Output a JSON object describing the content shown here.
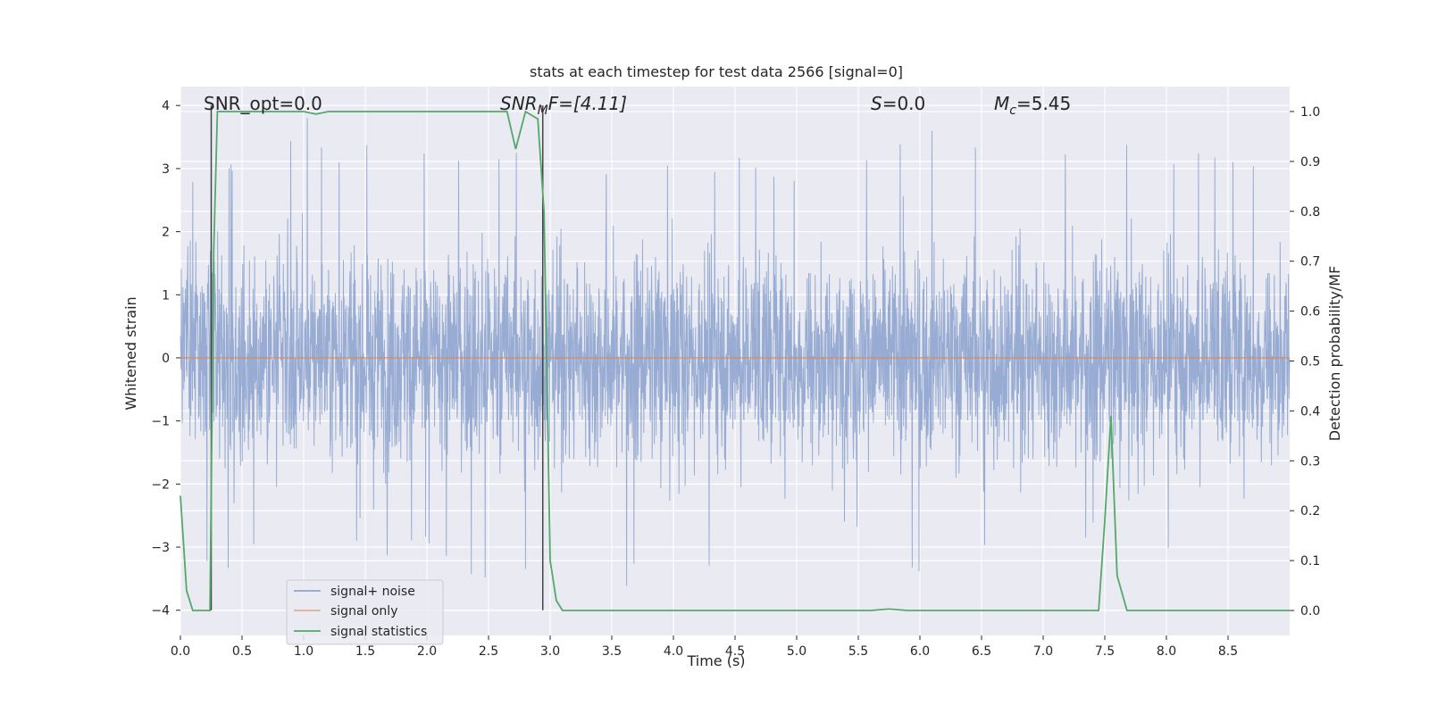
{
  "chart_data": {
    "type": "line",
    "title": "stats at each timestep for test data 2566 [signal=0]",
    "xlabel": "Time (s)",
    "ylabel": "Whitened strain",
    "ylabel_right": "Detection probability/MF",
    "xlim": [
      0.0,
      9.0
    ],
    "ylim": [
      -4.4,
      4.3
    ],
    "ylim_right": [
      -0.05,
      1.05
    ],
    "grid": true,
    "legend_position": "lower-left",
    "x_ticks": [
      0.0,
      0.5,
      1.0,
      1.5,
      2.0,
      2.5,
      3.0,
      3.5,
      4.0,
      4.5,
      5.0,
      5.5,
      6.0,
      6.5,
      7.0,
      7.5,
      8.0,
      8.5
    ],
    "x_tick_labels": [
      "0.0",
      "0.5",
      "1.0",
      "1.5",
      "2.0",
      "2.5",
      "3.0",
      "3.5",
      "4.0",
      "4.5",
      "5.0",
      "5.5",
      "6.0",
      "6.5",
      "7.0",
      "7.5",
      "8.0",
      "8.5"
    ],
    "y_ticks": [
      -4,
      -3,
      -2,
      -1,
      0,
      1,
      2,
      3,
      4
    ],
    "y_tick_labels": [
      "−4",
      "−3",
      "−2",
      "−1",
      "0",
      "1",
      "2",
      "3",
      "4"
    ],
    "y_right_ticks": [
      0.0,
      0.1,
      0.2,
      0.3,
      0.4,
      0.5,
      0.6,
      0.7,
      0.8,
      0.9,
      1.0
    ],
    "y_right_tick_labels": [
      "0.0",
      "0.1",
      "0.2",
      "0.3",
      "0.4",
      "0.5",
      "0.6",
      "0.7",
      "0.8",
      "0.9",
      "1.0"
    ],
    "annotations": [
      {
        "id": "snr_opt",
        "text": "SNR_opt=0.0"
      },
      {
        "id": "snr_mf",
        "text": "SNR",
        "sub": "M",
        "rest": "F=[4.11]"
      },
      {
        "id": "s_val",
        "text": "S",
        "rest": "=0.0"
      },
      {
        "id": "mc_val",
        "text": "M",
        "sub": "c",
        "rest": "=5.45"
      }
    ],
    "series": [
      {
        "name": "signal+ noise",
        "axis": "left",
        "color": "#8fa5cf",
        "description_envelope": "dense noise spanning roughly -4 to 4 around 0",
        "upper_envelope_x": [
          0.0,
          0.5,
          1.0,
          1.5,
          2.0,
          2.5,
          3.0,
          3.5,
          4.0,
          4.5,
          5.0,
          5.5,
          6.0,
          6.5,
          7.0,
          7.5,
          8.0,
          8.5,
          9.0
        ],
        "upper_envelope_y": [
          2.9,
          3.2,
          3.9,
          3.4,
          3.5,
          3.3,
          3.4,
          3.1,
          3.1,
          3.5,
          3.2,
          3.4,
          3.7,
          3.4,
          3.5,
          3.4,
          3.5,
          3.6,
          3.3
        ],
        "lower_envelope_y": [
          -3.2,
          -3.5,
          -3.2,
          -3.4,
          -3.0,
          -3.6,
          -3.6,
          -3.9,
          -3.5,
          -3.3,
          -3.4,
          -3.0,
          -3.6,
          -3.2,
          -3.0,
          -3.0,
          -3.1,
          -3.1,
          -2.9
        ]
      },
      {
        "name": "signal only",
        "axis": "left",
        "color": "#dd8452",
        "x": [
          0.0,
          9.0
        ],
        "y": [
          0.0,
          0.0
        ]
      },
      {
        "name": "signal statistics",
        "axis": "right",
        "color": "#55a868",
        "x": [
          0.0,
          0.05,
          0.1,
          0.2,
          0.24,
          0.27,
          0.3,
          0.35,
          0.5,
          1.0,
          1.1,
          1.2,
          1.5,
          2.0,
          2.5,
          2.65,
          2.72,
          2.8,
          2.9,
          2.95,
          3.0,
          3.05,
          3.1,
          3.2,
          3.5,
          4.0,
          5.0,
          5.6,
          5.75,
          5.9,
          6.5,
          7.0,
          7.45,
          7.5,
          7.55,
          7.6,
          7.68,
          7.75,
          8.0,
          8.5,
          9.0
        ],
        "y": [
          0.23,
          0.04,
          0.0,
          0.0,
          0.0,
          0.72,
          1.0,
          1.0,
          1.0,
          1.0,
          0.995,
          1.0,
          1.0,
          1.0,
          1.0,
          1.0,
          0.925,
          1.0,
          0.985,
          0.8,
          0.1,
          0.02,
          0.0,
          0.0,
          0.0,
          0.0,
          0.0,
          0.0,
          0.003,
          0.0,
          0.0,
          0.0,
          0.0,
          0.18,
          0.39,
          0.07,
          0.0,
          0.0,
          0.0,
          0.0,
          0.0
        ]
      }
    ],
    "vertical_lines": [
      {
        "x": 0.25,
        "ymin_left": -4.0,
        "ymax_left": 4.0,
        "color": "#444444"
      },
      {
        "x": 2.94,
        "ymin_left": -4.0,
        "ymax_left": 4.0,
        "color": "#444444"
      }
    ],
    "colors": {
      "plot_background": "#eaeaf2",
      "grid": "#ffffff",
      "noise": "#8fa5cf",
      "signal": "#dd8452",
      "statistics": "#55a868"
    }
  }
}
